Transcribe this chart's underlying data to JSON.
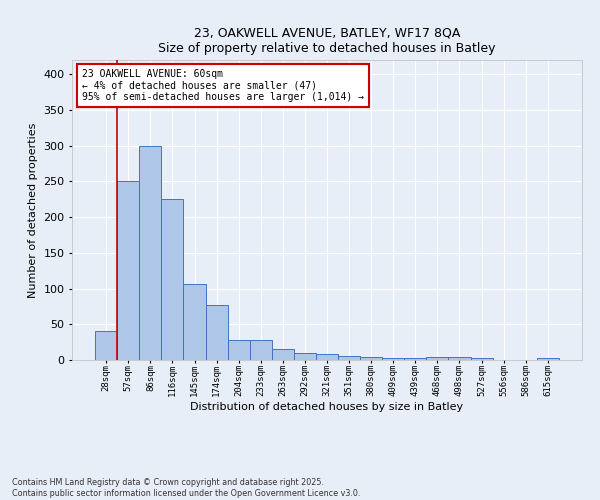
{
  "title_line1": "23, OAKWELL AVENUE, BATLEY, WF17 8QA",
  "title_line2": "Size of property relative to detached houses in Batley",
  "xlabel": "Distribution of detached houses by size in Batley",
  "ylabel": "Number of detached properties",
  "categories": [
    "28sqm",
    "57sqm",
    "86sqm",
    "116sqm",
    "145sqm",
    "174sqm",
    "204sqm",
    "233sqm",
    "263sqm",
    "292sqm",
    "321sqm",
    "351sqm",
    "380sqm",
    "409sqm",
    "439sqm",
    "468sqm",
    "498sqm",
    "527sqm",
    "556sqm",
    "586sqm",
    "615sqm"
  ],
  "values": [
    40,
    250,
    300,
    225,
    106,
    77,
    28,
    28,
    16,
    10,
    8,
    5,
    4,
    3,
    3,
    4,
    4,
    3,
    0,
    0,
    3
  ],
  "bar_color": "#aec6e8",
  "bar_edge_color": "#4472c4",
  "vline_x_index": 1,
  "annotation_title": "23 OAKWELL AVENUE: 60sqm",
  "annotation_line2": "← 4% of detached houses are smaller (47)",
  "annotation_line3": "95% of semi-detached houses are larger (1,014) →",
  "annotation_box_color": "#ffffff",
  "annotation_box_edge": "#cc0000",
  "vline_color": "#cc0000",
  "background_color": "#e8eef7",
  "grid_color": "#ffffff",
  "ylim": [
    0,
    420
  ],
  "yticks": [
    0,
    50,
    100,
    150,
    200,
    250,
    300,
    350,
    400
  ],
  "footer_line1": "Contains HM Land Registry data © Crown copyright and database right 2025.",
  "footer_line2": "Contains public sector information licensed under the Open Government Licence v3.0."
}
